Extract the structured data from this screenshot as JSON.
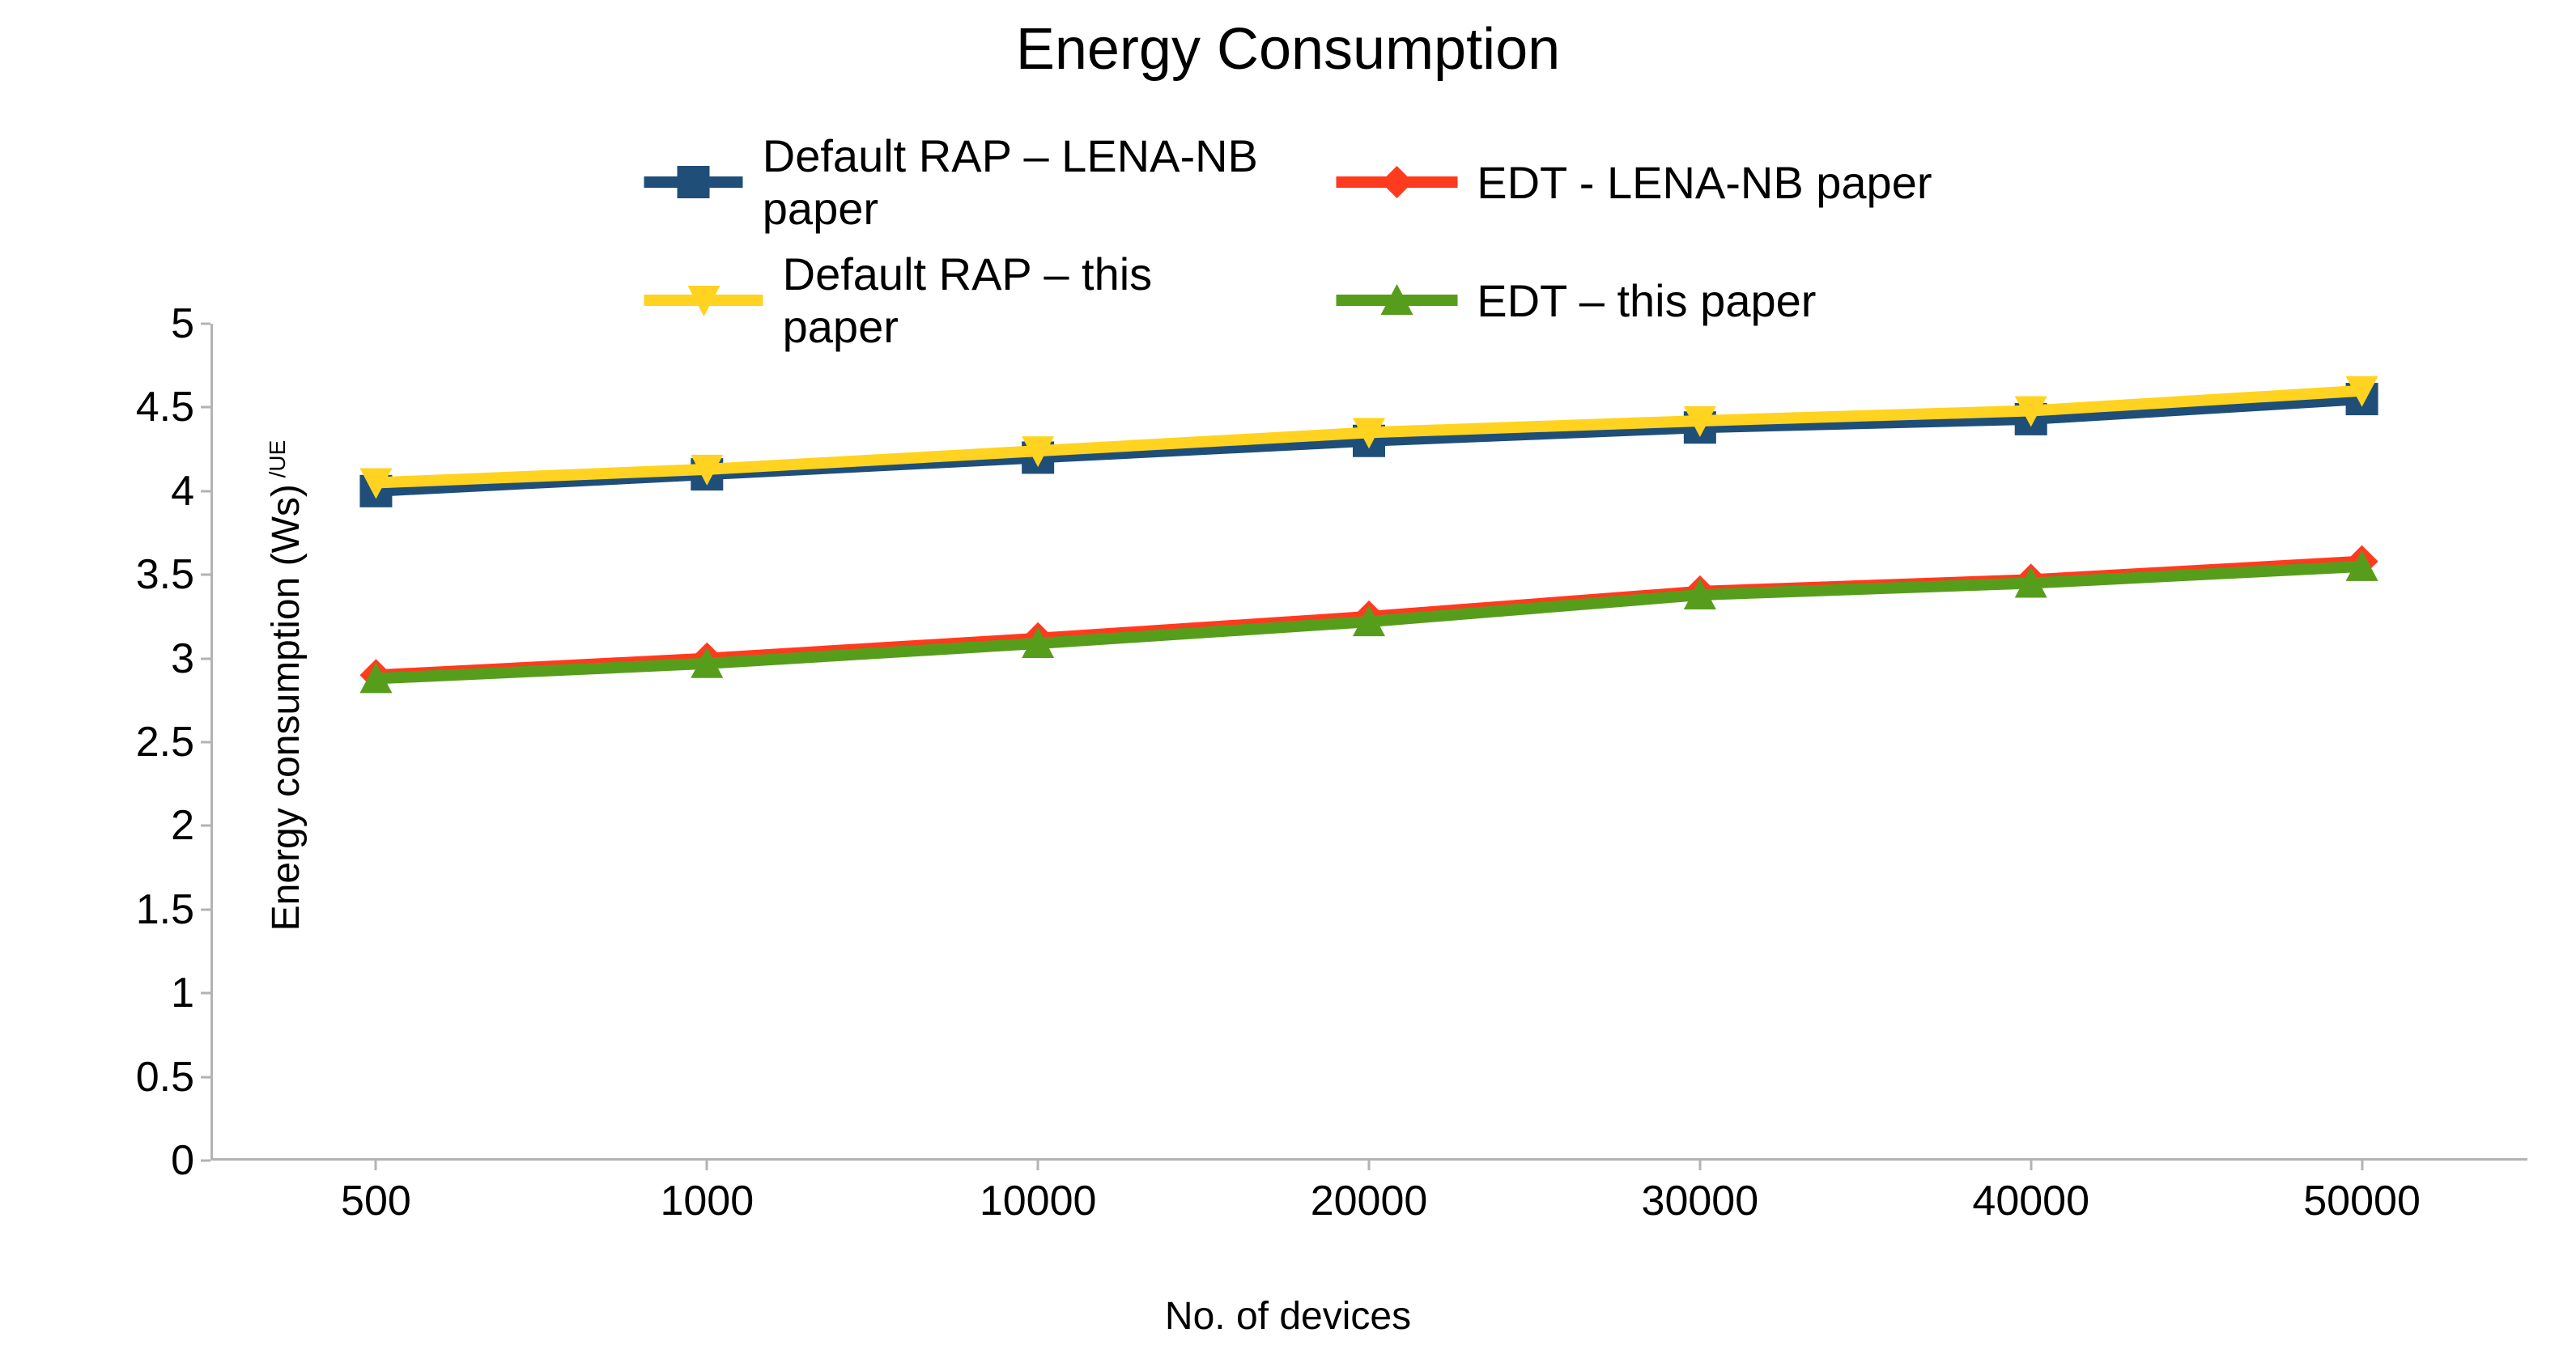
{
  "chart": {
    "type": "line",
    "title": "Energy Consumption",
    "title_fontsize": 72,
    "xlabel": "No. of devices",
    "ylabel_main": "Energy consumption (Ws)",
    "ylabel_sup": " /UE",
    "label_fontsize": 48,
    "tick_fontsize": 52,
    "background_color": "#ffffff",
    "axis_color": "#b3b3b3",
    "x_categories": [
      "500",
      "1000",
      "10000",
      "20000",
      "30000",
      "40000",
      "50000"
    ],
    "ylim": [
      0,
      5
    ],
    "ytick_step": 0.5,
    "yticks": [
      0,
      0.5,
      1,
      1.5,
      2,
      2.5,
      3,
      3.5,
      4,
      4.5,
      5
    ],
    "line_width": 14,
    "marker_size": 44,
    "series": [
      {
        "id": "default_rap_lena",
        "label": "Default RAP – LENA-NB paper",
        "color": "#1f4e79",
        "marker": "square",
        "legend_row": 0,
        "legend_col": 0,
        "values": [
          4.0,
          4.1,
          4.2,
          4.3,
          4.38,
          4.43,
          4.55
        ]
      },
      {
        "id": "edt_lena",
        "label": "EDT -  LENA-NB paper",
        "color": "#ff3b1f",
        "marker": "diamond",
        "legend_row": 0,
        "legend_col": 1,
        "values": [
          2.9,
          3.0,
          3.12,
          3.25,
          3.4,
          3.47,
          3.58
        ]
      },
      {
        "id": "default_rap_this",
        "label": "Default RAP – this paper",
        "color": "#ffd320",
        "marker": "triangle-down",
        "legend_row": 1,
        "legend_col": 0,
        "values": [
          4.05,
          4.13,
          4.24,
          4.35,
          4.42,
          4.48,
          4.6
        ]
      },
      {
        "id": "edt_this",
        "label": "EDT – this paper",
        "color": "#579d1c",
        "marker": "triangle-up",
        "legend_row": 1,
        "legend_col": 1,
        "values": [
          2.88,
          2.97,
          3.09,
          3.22,
          3.38,
          3.45,
          3.55
        ]
      }
    ],
    "legend_draw_order": [
      "default_rap_lena",
      "edt_lena",
      "default_rap_this",
      "edt_this"
    ],
    "plot_draw_order": [
      "default_rap_lena",
      "edt_lena",
      "default_rap_this",
      "edt_this"
    ]
  }
}
